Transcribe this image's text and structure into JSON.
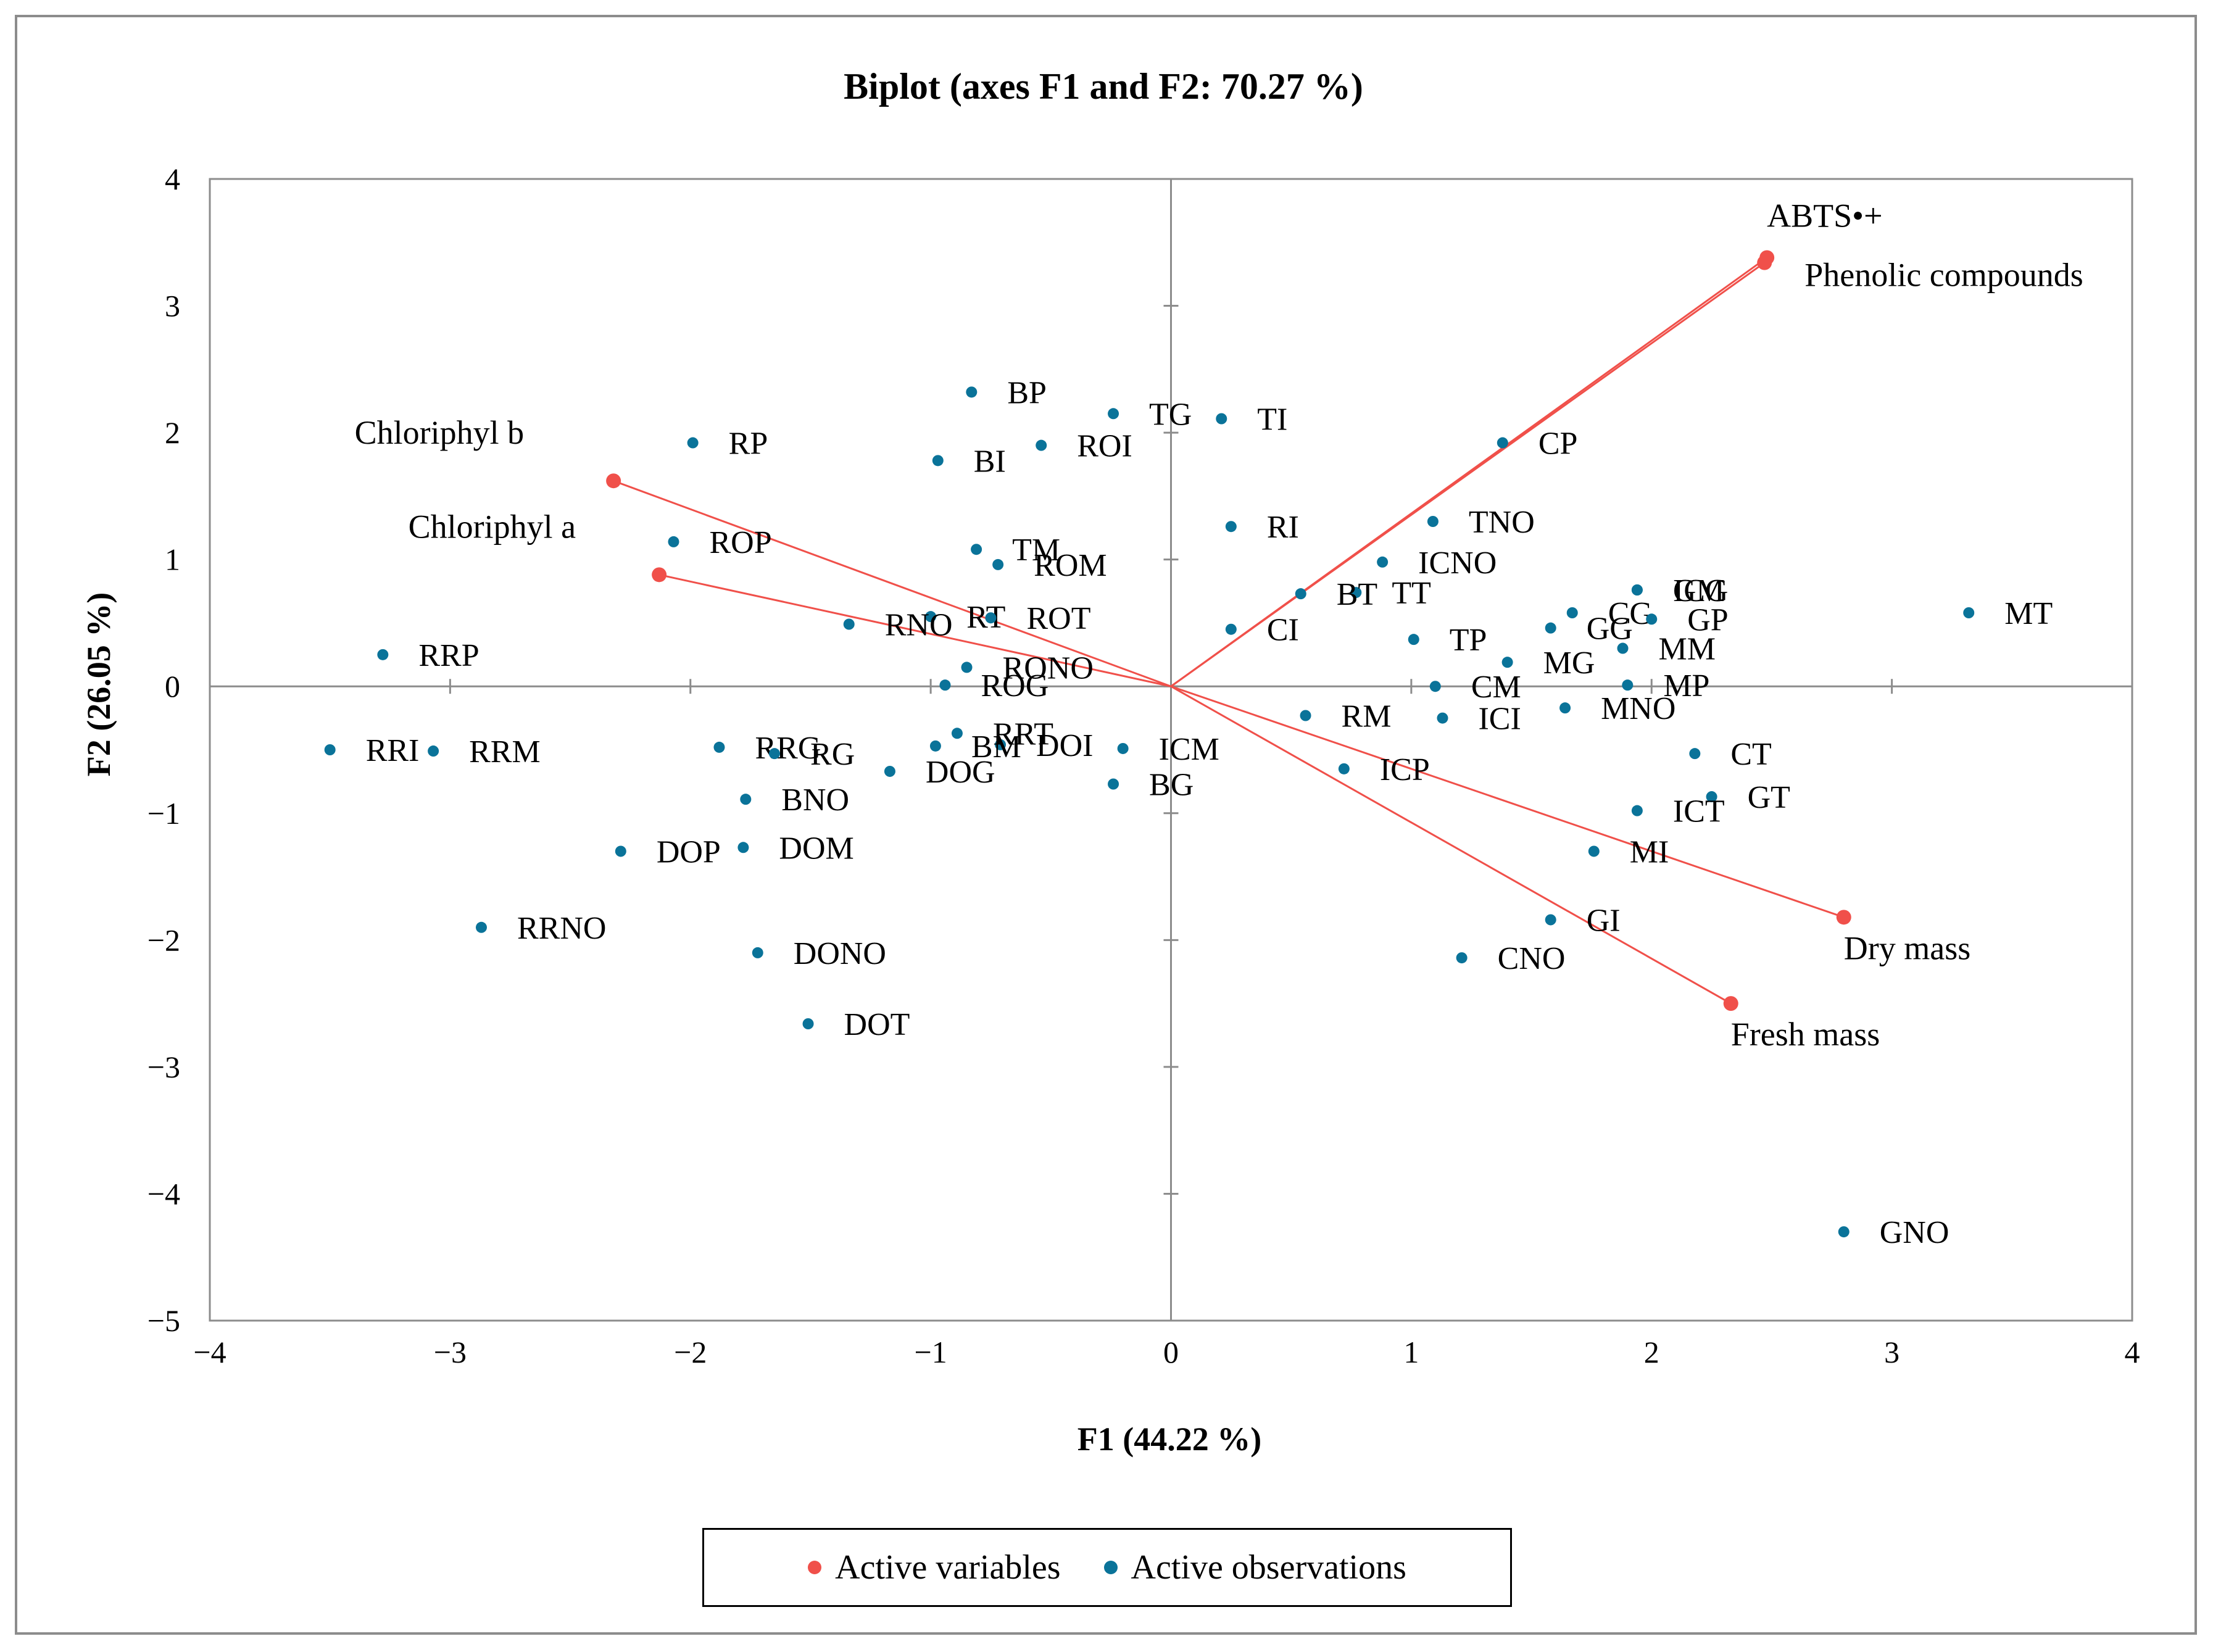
{
  "chart_data": {
    "type": "scatter",
    "title": "Biplot (axes F1 and F2: 70.27 %)",
    "xlabel": "F1 (44.22 %)",
    "ylabel": "F2 (26.05 %)",
    "xlim": [
      -4,
      4
    ],
    "ylim": [
      -5,
      4
    ],
    "xticks": [
      "−4",
      "−3",
      "−2",
      "−1",
      "0",
      "1",
      "2",
      "3",
      "4"
    ],
    "yticks": [
      "4",
      "3",
      "2",
      "1",
      "0",
      "−1",
      "−2",
      "−3",
      "−4",
      "−5"
    ],
    "colors": {
      "variables": "#f0504a",
      "observations": "#0a7399"
    },
    "legend": [
      "Active variables",
      "Active observations"
    ],
    "variables": [
      {
        "name": "ABTS•+",
        "x": 2.48,
        "y": 3.38
      },
      {
        "name": "Phenolic compounds",
        "x": 2.47,
        "y": 3.34
      },
      {
        "name": "Chloriphyl b",
        "x": -2.32,
        "y": 1.62
      },
      {
        "name": "Chloriphyl a",
        "x": -2.13,
        "y": 0.88
      },
      {
        "name": "Dry mass",
        "x": 2.8,
        "y": -1.82
      },
      {
        "name": "Fresh mass",
        "x": 2.33,
        "y": -2.5
      }
    ],
    "observations": [
      {
        "name": "BP",
        "x": -0.83,
        "y": 2.32
      },
      {
        "name": "TG",
        "x": -0.24,
        "y": 2.15
      },
      {
        "name": "TI",
        "x": 0.21,
        "y": 2.11
      },
      {
        "name": "RP",
        "x": -1.99,
        "y": 1.92
      },
      {
        "name": "ROI",
        "x": -0.54,
        "y": 1.9
      },
      {
        "name": "BI",
        "x": -0.97,
        "y": 1.78
      },
      {
        "name": "CP",
        "x": 1.38,
        "y": 1.92
      },
      {
        "name": "RI",
        "x": 0.25,
        "y": 1.26
      },
      {
        "name": "TNO",
        "x": 1.09,
        "y": 1.3
      },
      {
        "name": "ROP",
        "x": -2.07,
        "y": 1.14
      },
      {
        "name": "TM",
        "x": -0.81,
        "y": 1.08
      },
      {
        "name": "ROM",
        "x": -0.72,
        "y": 0.96
      },
      {
        "name": "ICNO",
        "x": 0.88,
        "y": 0.98
      },
      {
        "name": "ICG",
        "x": 1.94,
        "y": 0.76
      },
      {
        "name": "GM",
        "x": 1.94,
        "y": 0.76
      },
      {
        "name": "TT",
        "x": 0.77,
        "y": 0.74
      },
      {
        "name": "BT",
        "x": 0.54,
        "y": 0.73
      },
      {
        "name": "RT",
        "x": -1.0,
        "y": 0.55
      },
      {
        "name": "ROT",
        "x": -0.75,
        "y": 0.54
      },
      {
        "name": "CG",
        "x": 1.67,
        "y": 0.58
      },
      {
        "name": "GP",
        "x": 2.0,
        "y": 0.53
      },
      {
        "name": "MT",
        "x": 3.32,
        "y": 0.58
      },
      {
        "name": "CI",
        "x": 0.25,
        "y": 0.45
      },
      {
        "name": "RNO",
        "x": -1.34,
        "y": 0.49
      },
      {
        "name": "RONO",
        "x": -0.85,
        "y": 0.15
      },
      {
        "name": "TP",
        "x": 1.01,
        "y": 0.37
      },
      {
        "name": "MM",
        "x": 1.88,
        "y": 0.3
      },
      {
        "name": "GG",
        "x": 1.58,
        "y": 0.46
      },
      {
        "name": "RRP",
        "x": -3.28,
        "y": 0.25
      },
      {
        "name": "ROG",
        "x": -0.94,
        "y": 0.01
      },
      {
        "name": "CM",
        "x": 1.1,
        "y": 0.0
      },
      {
        "name": "MG",
        "x": 1.4,
        "y": 0.19
      },
      {
        "name": "MP",
        "x": 1.9,
        "y": 0.01
      },
      {
        "name": "MNO",
        "x": 1.64,
        "y": -0.17
      },
      {
        "name": "RM",
        "x": 0.56,
        "y": -0.23
      },
      {
        "name": "ICI",
        "x": 1.13,
        "y": -0.25
      },
      {
        "name": "RRG",
        "x": -1.88,
        "y": -0.48
      },
      {
        "name": "RG",
        "x": -1.65,
        "y": -0.53
      },
      {
        "name": "DOI",
        "x": -0.71,
        "y": -0.46
      },
      {
        "name": "RRT",
        "x": -0.89,
        "y": -0.37
      },
      {
        "name": "ICM",
        "x": -0.2,
        "y": -0.49
      },
      {
        "name": "CT",
        "x": 2.18,
        "y": -0.53
      },
      {
        "name": "RRI",
        "x": -3.5,
        "y": -0.5
      },
      {
        "name": "RRM",
        "x": -3.07,
        "y": -0.51
      },
      {
        "name": "DOG",
        "x": -1.17,
        "y": -0.67
      },
      {
        "name": "BM",
        "x": -0.98,
        "y": -0.47
      },
      {
        "name": "BG",
        "x": -0.24,
        "y": -0.77
      },
      {
        "name": "ICP",
        "x": 0.72,
        "y": -0.65
      },
      {
        "name": "BNO",
        "x": -1.77,
        "y": -0.89
      },
      {
        "name": "GT",
        "x": 2.25,
        "y": -0.87
      },
      {
        "name": "ICT",
        "x": 1.94,
        "y": -0.98
      },
      {
        "name": "DOP",
        "x": -2.29,
        "y": -1.3
      },
      {
        "name": "DOM",
        "x": -1.78,
        "y": -1.27
      },
      {
        "name": "MI",
        "x": 1.76,
        "y": -1.3
      },
      {
        "name": "GI",
        "x": 1.58,
        "y": -1.84
      },
      {
        "name": "RRNO",
        "x": -2.87,
        "y": -1.9
      },
      {
        "name": "DONO",
        "x": -1.72,
        "y": -2.1
      },
      {
        "name": "CNO",
        "x": 1.21,
        "y": -2.14
      },
      {
        "name": "DOT",
        "x": -1.51,
        "y": -2.66
      },
      {
        "name": "GNO",
        "x": 2.8,
        "y": -4.3
      }
    ]
  }
}
